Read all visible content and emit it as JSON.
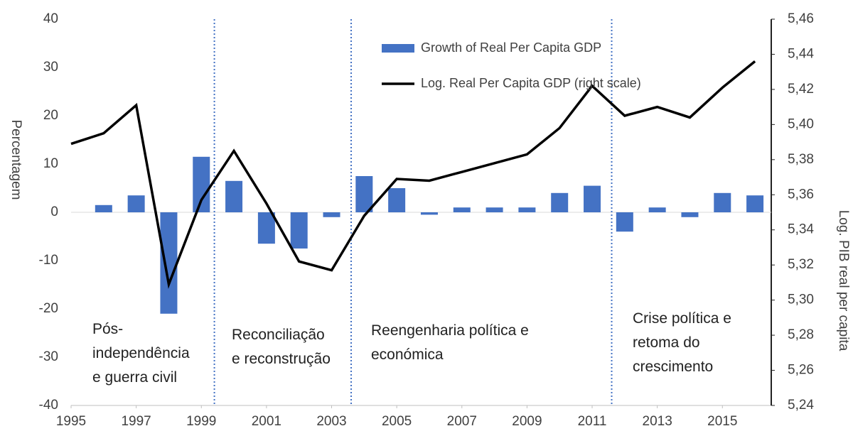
{
  "chart_data": {
    "type": "bar-line",
    "x": [
      1995,
      1996,
      1997,
      1998,
      1999,
      2000,
      2001,
      2002,
      2003,
      2004,
      2005,
      2006,
      2007,
      2008,
      2009,
      2010,
      2011,
      2012,
      2013,
      2014,
      2015,
      2016
    ],
    "series": [
      {
        "name": "Growth of Real Per Capita GDP",
        "kind": "bar",
        "color": "#4472c4",
        "values": [
          null,
          1.5,
          3.5,
          -21,
          11.5,
          6.5,
          -6.5,
          -7.5,
          -1,
          7.5,
          5,
          -0.5,
          1,
          1,
          1,
          4,
          5.5,
          -4,
          1,
          -1,
          4,
          3.5
        ]
      },
      {
        "name": "Log. Real Per Capita GDP (right scale)",
        "kind": "line",
        "axis": "y2",
        "color": "#000000",
        "values": [
          5.389,
          5.395,
          5.411,
          5.309,
          5.357,
          5.385,
          5.355,
          5.322,
          5.317,
          5.348,
          5.369,
          5.368,
          5.373,
          5.378,
          5.383,
          5.398,
          5.422,
          5.405,
          5.41,
          5.404,
          5.421,
          5.436
        ]
      }
    ],
    "xlim": [
      1995,
      2016.5
    ],
    "xticks": [
      1995,
      1997,
      1999,
      2001,
      2003,
      2005,
      2007,
      2009,
      2011,
      2013,
      2015
    ],
    "ylabel": "Percentagem",
    "ylim": [
      -40,
      40
    ],
    "yticks": [
      -40,
      -30,
      -20,
      -10,
      0,
      10,
      20,
      30,
      40
    ],
    "y2label": "Log. PIB real per capita",
    "y2lim": [
      5.24,
      5.46
    ],
    "y2ticks": [
      {
        "value": 5.24,
        "label": "5,24"
      },
      {
        "value": 5.26,
        "label": "5,26"
      },
      {
        "value": 5.28,
        "label": "5,28"
      },
      {
        "value": 5.3,
        "label": "5,30"
      },
      {
        "value": 5.32,
        "label": "5,32"
      },
      {
        "value": 5.34,
        "label": "5,34"
      },
      {
        "value": 5.36,
        "label": "5,36"
      },
      {
        "value": 5.38,
        "label": "5,38"
      },
      {
        "value": 5.4,
        "label": "5,40"
      },
      {
        "value": 5.42,
        "label": "5,42"
      },
      {
        "value": 5.44,
        "label": "5,44"
      },
      {
        "value": 5.46,
        "label": "5,46"
      }
    ],
    "period_dividers": [
      1999.4,
      2003.6,
      2011.6
    ],
    "annotations": [
      [
        "Pós-",
        "independência",
        "e guerra civil"
      ],
      [
        "Reconciliação",
        "e reconstrução"
      ],
      [
        "Reengenharia política e",
        "económica"
      ],
      [
        "Crise política e",
        "retoma do",
        "crescimento"
      ]
    ],
    "legend": "top-center"
  }
}
